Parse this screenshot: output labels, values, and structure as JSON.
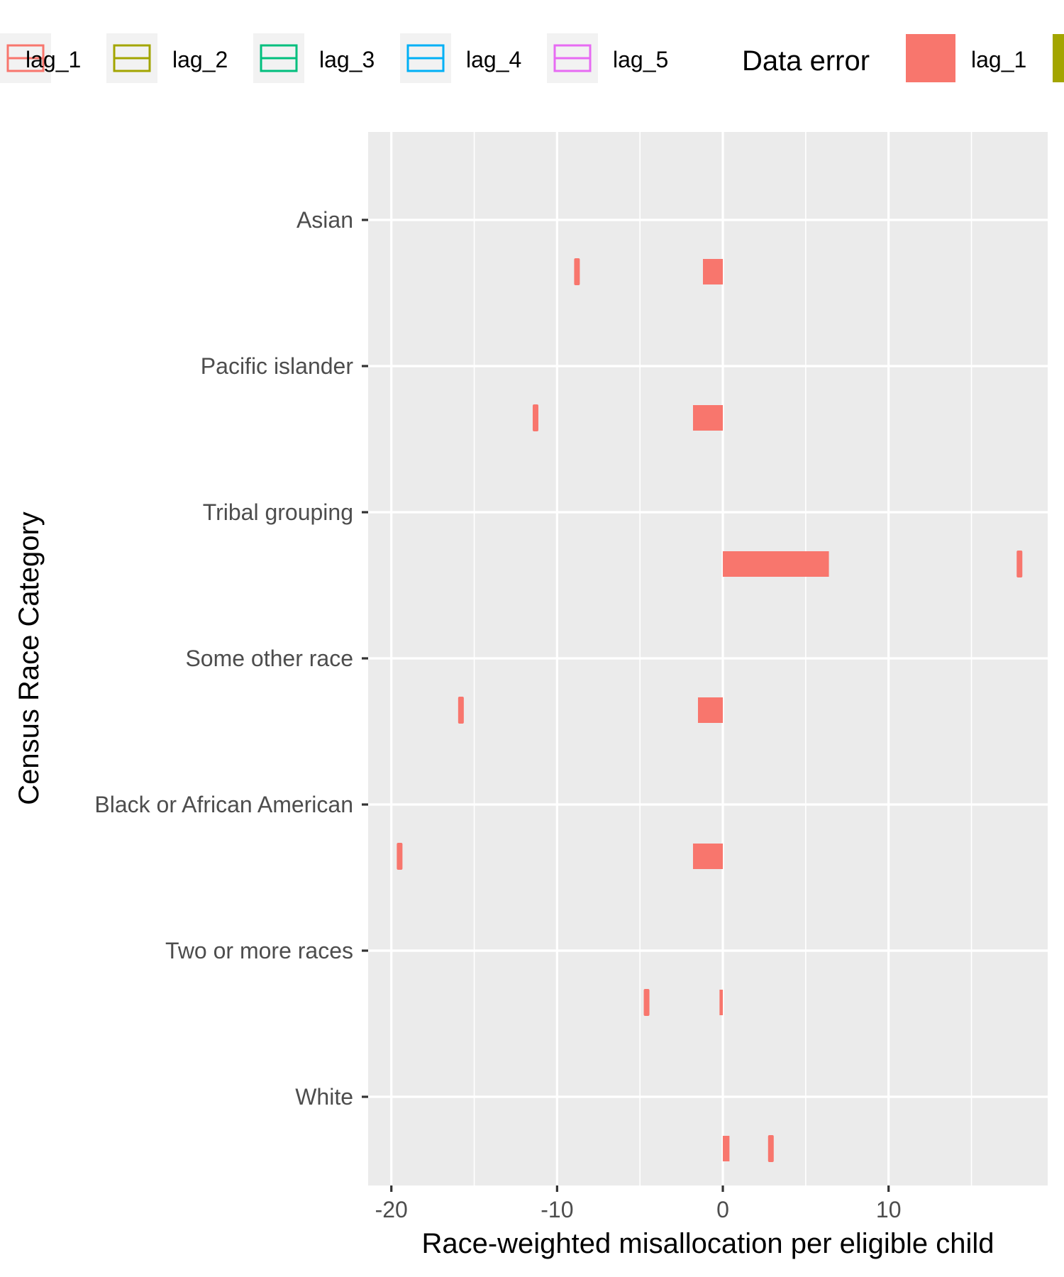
{
  "chart_data": {
    "type": "bar",
    "title": "",
    "xlabel": "Race-weighted misallocation per eligible child",
    "ylabel": "Census Race Category",
    "xlim": [
      -21.4,
      19.6
    ],
    "x_ticks": [
      -20,
      -10,
      0,
      10
    ],
    "x_tick_labels": [
      "-20",
      "-10",
      "0",
      "10"
    ],
    "grid": true,
    "categories": [
      "Asian",
      "Pacific islander",
      "Tribal grouping",
      "Some other race",
      "Black or African American",
      "Two or more races",
      "White"
    ],
    "series": [
      {
        "name": "lag_1",
        "color": "#F8766D",
        "values": [
          {
            "category": "Asian",
            "data_error_bar": [
              -1.2,
              0.0
            ],
            "outline_bar": [
              -8.9,
              -8.7
            ]
          },
          {
            "category": "Pacific islander",
            "data_error_bar": [
              -1.8,
              0.0
            ],
            "outline_bar": [
              -11.4,
              -11.2
            ]
          },
          {
            "category": "Tribal grouping",
            "data_error_bar": [
              0.0,
              6.4
            ],
            "outline_bar": [
              17.8,
              18.0
            ]
          },
          {
            "category": "Some other race",
            "data_error_bar": [
              -1.5,
              0.0
            ],
            "outline_bar": [
              -15.9,
              -15.7
            ]
          },
          {
            "category": "Black or African American",
            "data_error_bar": [
              -1.8,
              0.0
            ],
            "outline_bar": [
              -19.6,
              -19.4
            ]
          },
          {
            "category": "Two or more races",
            "data_error_bar": [
              -0.2,
              0.0
            ],
            "outline_bar": [
              -4.7,
              -4.5
            ]
          },
          {
            "category": "White",
            "data_error_bar": [
              0.0,
              0.4
            ],
            "outline_bar": [
              2.8,
              3.0
            ]
          }
        ]
      }
    ],
    "legend": {
      "placement": "top",
      "outline_entries": [
        "lag_1",
        "lag_2",
        "lag_3",
        "lag_4",
        "lag_5"
      ],
      "outline_colors": [
        "#F8766D",
        "#A3A500",
        "#00BF7D",
        "#00B0F6",
        "#E76BF3"
      ],
      "fill_title": "Data error",
      "fill_entries": [
        "lag_1",
        ""
      ],
      "fill_colors": [
        "#F8766D",
        "#A3A500"
      ]
    }
  }
}
